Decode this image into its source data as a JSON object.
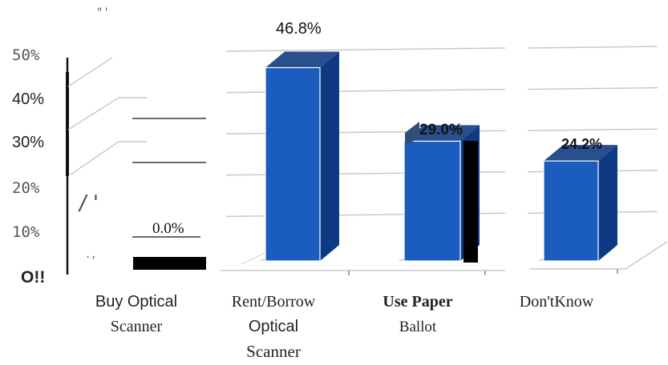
{
  "chart_data": {
    "type": "bar",
    "title": "",
    "xlabel": "",
    "ylabel": "",
    "ylim": [
      0,
      50
    ],
    "y_ticks": [
      "O!!",
      "10%",
      "20%",
      "30%",
      "40%",
      "50%"
    ],
    "categories": [
      [
        "Buy Optical",
        "Scanner"
      ],
      [
        "Rent/Borrow",
        "Optical",
        "Scanner"
      ],
      [
        "Use Paper",
        "Ballot"
      ],
      [
        "Don'tKnow"
      ]
    ],
    "values": [
      0.0,
      46.8,
      29.0,
      24.2
    ],
    "value_labels": [
      "0.0%",
      "46.8%",
      "29.0%",
      "24.2%"
    ],
    "marks": [
      "\"'",
      "/'",
      ".,"
    ],
    "grid": true,
    "bar_color": "#1b5cbf",
    "bar_side_color": "#0d3a82",
    "bar_top_color": "#2a4f8e"
  }
}
